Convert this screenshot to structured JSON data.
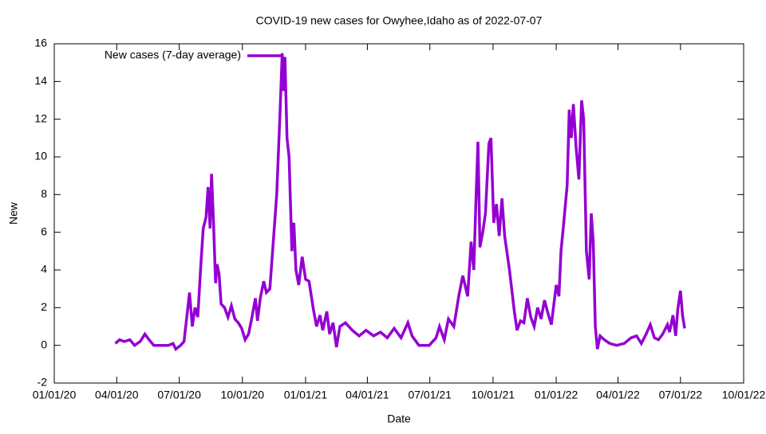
{
  "chart_data": {
    "type": "line",
    "title": "COVID-19 new cases for Owyhee,Idaho as of 2022-07-07",
    "xlabel": "Date",
    "ylabel": "New",
    "legend": "top-left",
    "xlim": [
      "2020-01-01",
      "2022-10-01"
    ],
    "xticks": [
      {
        "value": "2020-01-01",
        "label": "01/01/20"
      },
      {
        "value": "2020-04-01",
        "label": "04/01/20"
      },
      {
        "value": "2020-07-01",
        "label": "07/01/20"
      },
      {
        "value": "2020-10-01",
        "label": "10/01/20"
      },
      {
        "value": "2021-01-01",
        "label": "01/01/21"
      },
      {
        "value": "2021-04-01",
        "label": "04/01/21"
      },
      {
        "value": "2021-07-01",
        "label": "07/01/21"
      },
      {
        "value": "2021-10-01",
        "label": "10/01/21"
      },
      {
        "value": "2022-01-01",
        "label": "01/01/22"
      },
      {
        "value": "2022-04-01",
        "label": "04/01/22"
      },
      {
        "value": "2022-07-01",
        "label": "07/01/22"
      },
      {
        "value": "2022-10-01",
        "label": "10/01/22"
      }
    ],
    "ylim": [
      -2,
      16
    ],
    "yticks": [
      -2,
      0,
      2,
      4,
      6,
      8,
      10,
      12,
      14,
      16
    ],
    "x": [
      "2020-03-30",
      "2020-04-05",
      "2020-04-12",
      "2020-04-20",
      "2020-04-27",
      "2020-05-05",
      "2020-05-12",
      "2020-05-18",
      "2020-05-25",
      "2020-06-05",
      "2020-06-15",
      "2020-06-22",
      "2020-06-26",
      "2020-07-03",
      "2020-07-08",
      "2020-07-12",
      "2020-07-16",
      "2020-07-20",
      "2020-07-24",
      "2020-07-28",
      "2020-08-01",
      "2020-08-05",
      "2020-08-09",
      "2020-08-12",
      "2020-08-15",
      "2020-08-17",
      "2020-08-20",
      "2020-08-23",
      "2020-08-25",
      "2020-08-28",
      "2020-08-31",
      "2020-09-05",
      "2020-09-10",
      "2020-09-15",
      "2020-09-20",
      "2020-09-25",
      "2020-09-30",
      "2020-10-05",
      "2020-10-10",
      "2020-10-15",
      "2020-10-20",
      "2020-10-23",
      "2020-10-27",
      "2020-11-01",
      "2020-11-05",
      "2020-11-10",
      "2020-11-15",
      "2020-11-20",
      "2020-11-25",
      "2020-11-28",
      "2020-11-30",
      "2020-12-02",
      "2020-12-05",
      "2020-12-08",
      "2020-12-12",
      "2020-12-15",
      "2020-12-18",
      "2020-12-22",
      "2020-12-27",
      "2021-01-01",
      "2021-01-06",
      "2021-01-12",
      "2021-01-17",
      "2021-01-22",
      "2021-01-26",
      "2021-02-01",
      "2021-02-05",
      "2021-02-10",
      "2021-02-15",
      "2021-02-20",
      "2021-02-28",
      "2021-03-10",
      "2021-03-20",
      "2021-03-30",
      "2021-04-10",
      "2021-04-20",
      "2021-04-30",
      "2021-05-10",
      "2021-05-20",
      "2021-05-30",
      "2021-06-05",
      "2021-06-15",
      "2021-06-30",
      "2021-07-10",
      "2021-07-15",
      "2021-07-22",
      "2021-07-28",
      "2021-08-05",
      "2021-08-12",
      "2021-08-18",
      "2021-08-25",
      "2021-08-30",
      "2021-09-03",
      "2021-09-06",
      "2021-09-09",
      "2021-09-12",
      "2021-09-16",
      "2021-09-20",
      "2021-09-25",
      "2021-09-28",
      "2021-10-02",
      "2021-10-06",
      "2021-10-10",
      "2021-10-14",
      "2021-10-18",
      "2021-10-25",
      "2021-11-01",
      "2021-11-05",
      "2021-11-10",
      "2021-11-15",
      "2021-11-20",
      "2021-11-25",
      "2021-11-30",
      "2021-12-05",
      "2021-12-10",
      "2021-12-15",
      "2021-12-20",
      "2021-12-25",
      "2022-01-01",
      "2022-01-05",
      "2022-01-08",
      "2022-01-12",
      "2022-01-17",
      "2022-01-20",
      "2022-01-23",
      "2022-01-26",
      "2022-01-30",
      "2022-02-03",
      "2022-02-07",
      "2022-02-10",
      "2022-02-14",
      "2022-02-18",
      "2022-02-21",
      "2022-02-24",
      "2022-02-27",
      "2022-03-02",
      "2022-03-06",
      "2022-03-12",
      "2022-03-20",
      "2022-03-30",
      "2022-04-10",
      "2022-04-20",
      "2022-04-28",
      "2022-05-05",
      "2022-05-12",
      "2022-05-18",
      "2022-05-24",
      "2022-05-30",
      "2022-06-05",
      "2022-06-12",
      "2022-06-15",
      "2022-06-20",
      "2022-06-24",
      "2022-06-27",
      "2022-07-01",
      "2022-07-04",
      "2022-07-07"
    ],
    "series": [
      {
        "name": "New cases (7-day average)",
        "color": "#9400d3",
        "values": [
          0.1,
          0.3,
          0.2,
          0.3,
          0,
          0.2,
          0.6,
          0.3,
          0,
          0,
          0,
          0.1,
          -0.2,
          0,
          0.2,
          1.5,
          2.8,
          1.0,
          2.0,
          1.5,
          4.0,
          6.2,
          6.8,
          8.4,
          6.2,
          9.1,
          6.5,
          3.3,
          4.3,
          3.8,
          2.2,
          2.0,
          1.5,
          2.1,
          1.4,
          1.2,
          0.9,
          0.3,
          0.6,
          1.5,
          2.5,
          1.3,
          2.5,
          3.4,
          2.8,
          3.0,
          5.5,
          8.0,
          12.5,
          15.5,
          13.5,
          15.3,
          11.0,
          10.0,
          5.0,
          6.5,
          4.0,
          3.2,
          4.7,
          3.5,
          3.4,
          2.0,
          1.0,
          1.6,
          0.8,
          1.8,
          0.6,
          1.2,
          -0.1,
          1.0,
          1.2,
          0.8,
          0.5,
          0.8,
          0.5,
          0.7,
          0.4,
          0.9,
          0.4,
          1.2,
          0.5,
          0,
          0,
          0.4,
          1.0,
          0.3,
          1.4,
          1.0,
          2.6,
          3.7,
          2.6,
          5.5,
          4.0,
          7.6,
          10.8,
          5.2,
          6.0,
          7.0,
          10.7,
          11.0,
          6.5,
          7.5,
          5.8,
          7.8,
          5.8,
          4.0,
          1.8,
          0.8,
          1.3,
          1.2,
          2.5,
          1.5,
          1.0,
          2.0,
          1.4,
          2.4,
          1.7,
          1.1,
          3.2,
          2.6,
          5.0,
          6.5,
          8.5,
          12.5,
          11.0,
          12.8,
          10.5,
          8.8,
          13.0,
          12.0,
          5.0,
          3.5,
          7.0,
          5.5,
          1.0,
          -0.2,
          0.5,
          0.3,
          0.1,
          0,
          0.1,
          0.4,
          0.5,
          0.1,
          0.6,
          1.1,
          0.4,
          0.3,
          0.6,
          1.1,
          0.7,
          1.6,
          0.5,
          1.9,
          2.9,
          1.6,
          0.9
        ]
      }
    ]
  }
}
